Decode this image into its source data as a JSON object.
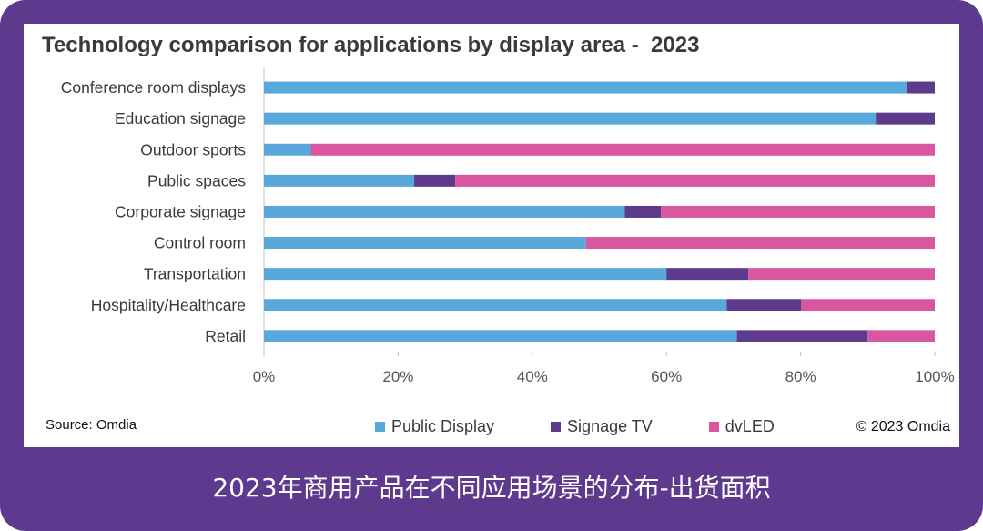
{
  "caption": "2023年商用产品在不同应用场景的分布-出货面积",
  "source": "Source: Omdia",
  "copyright": "© 2023 Omdia",
  "colors": {
    "frame": "#5e3a8e",
    "public_display": "#58a8dc",
    "signage_tv": "#5d3a8a",
    "dvled": "#d9579e"
  },
  "chart_data": {
    "type": "bar",
    "orientation": "horizontal",
    "stacked": true,
    "percent": true,
    "title": "Technology comparison for applications by display area -  2023",
    "categories": [
      "Conference room displays",
      "Education signage",
      "Outdoor sports",
      "Public spaces",
      "Corporate signage",
      "Control room",
      "Transportation",
      "Hospitality/Healthcare",
      "Retail"
    ],
    "series": [
      {
        "name": "Public Display",
        "color": "#58a8dc",
        "values": [
          95.8,
          91.2,
          7.0,
          22.4,
          53.8,
          48.0,
          60.0,
          69.0,
          70.5
        ]
      },
      {
        "name": "Signage TV",
        "color": "#5d3a8a",
        "values": [
          4.2,
          8.8,
          0.0,
          6.1,
          5.4,
          0.0,
          12.2,
          11.1,
          19.5
        ]
      },
      {
        "name": "dvLED",
        "color": "#d9579e",
        "values": [
          0.0,
          0.0,
          93.0,
          71.5,
          40.8,
          52.0,
          27.8,
          19.9,
          10.0
        ]
      }
    ],
    "xticks": [
      "0%",
      "20%",
      "40%",
      "60%",
      "80%",
      "100%"
    ],
    "xlim": [
      0,
      100
    ],
    "legend": "bottom"
  }
}
